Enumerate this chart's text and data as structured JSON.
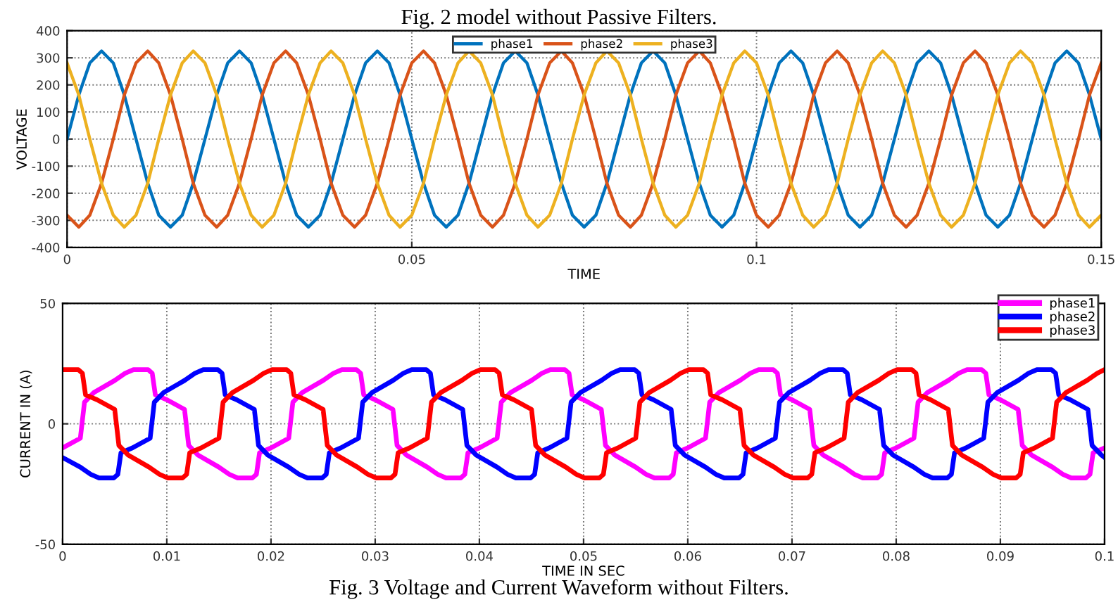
{
  "chart_data": [
    {
      "type": "line",
      "annotations": [
        "Fig. 2 model without Passive Filters."
      ],
      "xlabel": "TIME",
      "ylabel": "VOLTAGE",
      "xlim": [
        0,
        0.15
      ],
      "xticks": [
        0,
        0.05,
        0.1,
        0.15
      ],
      "ylim": [
        -400,
        400
      ],
      "yticks": [
        -400,
        -300,
        -200,
        -100,
        0,
        100,
        200,
        300,
        400
      ],
      "grid": true,
      "legend": "top",
      "x": [
        0,
        0.0017,
        0.0033,
        0.005,
        0.0067,
        0.0083,
        0.01,
        0.0117,
        0.0133,
        0.015,
        0.0167,
        0.0183,
        0.02,
        0.0217,
        0.0233,
        0.025,
        0.0267,
        0.0283,
        0.03,
        0.0317,
        0.0333,
        0.035,
        0.0367,
        0.0383,
        0.04,
        0.0417,
        0.0433,
        0.045,
        0.0467,
        0.0483,
        0.05,
        0.0517,
        0.0533,
        0.055,
        0.0567,
        0.0583,
        0.06,
        0.0617,
        0.0633,
        0.065,
        0.0667,
        0.0683,
        0.07,
        0.0717,
        0.0733,
        0.075,
        0.0767,
        0.0783,
        0.08,
        0.0817,
        0.0833,
        0.085,
        0.0867,
        0.0883,
        0.09,
        0.0917,
        0.0933,
        0.095,
        0.0967,
        0.0983,
        0.1,
        0.1017,
        0.1033,
        0.105,
        0.1067,
        0.1083,
        0.11,
        0.1117,
        0.1133,
        0.115,
        0.1167,
        0.1183,
        0.12,
        0.1217,
        0.1233,
        0.125,
        0.1267,
        0.1283,
        0.13,
        0.1317,
        0.1333,
        0.135,
        0.1367,
        0.1383,
        0.14,
        0.1417,
        0.1433,
        0.145,
        0.1467,
        0.1483,
        0.15
      ],
      "series": [
        {
          "name": "phase1",
          "color": "#0072bd",
          "values": [
            0,
            163,
            281,
            325,
            281,
            163,
            0,
            -163,
            -281,
            -325,
            -281,
            -163,
            0,
            163,
            281,
            325,
            281,
            163,
            0,
            -163,
            -281,
            -325,
            -281,
            -163,
            0,
            163,
            281,
            325,
            281,
            163,
            0,
            -163,
            -281,
            -325,
            -281,
            -163,
            0,
            163,
            281,
            325,
            281,
            163,
            0,
            -163,
            -281,
            -325,
            -281,
            -163,
            0,
            163,
            281,
            325,
            281,
            163,
            0,
            -163,
            -281,
            -325,
            -281,
            -163,
            0,
            163,
            281,
            325,
            281,
            163,
            0,
            -163,
            -281,
            -325,
            -281,
            -163,
            0,
            163,
            281,
            325,
            281,
            163,
            0,
            -163,
            -281,
            -325,
            -281,
            -163,
            0,
            163,
            281,
            325,
            281,
            163,
            0
          ]
        },
        {
          "name": "phase2",
          "color": "#d95319",
          "values": [
            -281,
            -325,
            -281,
            -163,
            0,
            163,
            281,
            325,
            281,
            163,
            0,
            -163,
            -281,
            -325,
            -281,
            -163,
            0,
            163,
            281,
            325,
            281,
            163,
            0,
            -163,
            -281,
            -325,
            -281,
            -163,
            0,
            163,
            281,
            325,
            281,
            163,
            0,
            -163,
            -281,
            -325,
            -281,
            -163,
            0,
            163,
            281,
            325,
            281,
            163,
            0,
            -163,
            -281,
            -325,
            -281,
            -163,
            0,
            163,
            281,
            325,
            281,
            163,
            0,
            -163,
            -281,
            -325,
            -281,
            -163,
            0,
            163,
            281,
            325,
            281,
            163,
            0,
            -163,
            -281,
            -325,
            -281,
            -163,
            0,
            163,
            281,
            325,
            281,
            163,
            0,
            -163,
            -281,
            -325,
            -281,
            -163,
            0,
            163,
            281
          ]
        },
        {
          "name": "phase3",
          "color": "#edb120",
          "values": [
            281,
            163,
            0,
            -163,
            -281,
            -325,
            -281,
            -163,
            0,
            163,
            281,
            325,
            281,
            163,
            0,
            -163,
            -281,
            -325,
            -281,
            -163,
            0,
            163,
            281,
            325,
            281,
            163,
            0,
            -163,
            -281,
            -325,
            -281,
            -163,
            0,
            163,
            281,
            325,
            281,
            163,
            0,
            -163,
            -281,
            -325,
            -281,
            -163,
            0,
            163,
            281,
            325,
            281,
            163,
            0,
            -163,
            -281,
            -325,
            -281,
            -163,
            0,
            163,
            281,
            325,
            281,
            163,
            0,
            -163,
            -281,
            -325,
            -281,
            -163,
            0,
            163,
            281,
            325,
            281,
            163,
            0,
            -163,
            -281,
            -325,
            -281,
            -163,
            0,
            163,
            281,
            325,
            281,
            163,
            0,
            -163,
            -281,
            -325,
            -281
          ]
        }
      ]
    },
    {
      "type": "line",
      "annotations": [
        "Fig. 3 Voltage and Current Waveform without Filters."
      ],
      "xlabel": "TIME IN SEC",
      "ylabel": "CURRENT IN (A)",
      "xlim": [
        0,
        0.1
      ],
      "xticks": [
        0,
        0.01,
        0.02,
        0.03,
        0.04,
        0.05,
        0.06,
        0.07,
        0.08,
        0.09,
        0.1
      ],
      "ylim": [
        -50,
        50
      ],
      "yticks": [
        -50,
        0,
        50
      ],
      "grid": true,
      "legend": "top right",
      "series": [
        {
          "name": "phase1",
          "color": "#ff00ff",
          "x": [
            0,
            0.0017,
            0.0021,
            0.003,
            0.005,
            0.006,
            0.0068,
            0.0082,
            0.0086,
            0.0089,
            0.01,
            0.0117,
            0.0121,
            0.013,
            0.015,
            0.016,
            0.0168,
            0.0182,
            0.0186,
            0.0189,
            0.02,
            0.0217,
            0.0221,
            0.023,
            0.025,
            0.026,
            0.0268,
            0.0282,
            0.0286,
            0.0289,
            0.03,
            0.0317,
            0.0321,
            0.033,
            0.035,
            0.036,
            0.0368,
            0.0382,
            0.0386,
            0.0389,
            0.04,
            0.0417,
            0.0421,
            0.043,
            0.045,
            0.046,
            0.0468,
            0.0482,
            0.0486,
            0.0489,
            0.05,
            0.0517,
            0.0521,
            0.053,
            0.055,
            0.056,
            0.0568,
            0.0582,
            0.0586,
            0.0589,
            0.06,
            0.0617,
            0.0621,
            0.063,
            0.065,
            0.066,
            0.0668,
            0.0682,
            0.0686,
            0.0689,
            0.07,
            0.0717,
            0.0721,
            0.073,
            0.075,
            0.076,
            0.0768,
            0.0782,
            0.0786,
            0.0789,
            0.08,
            0.0817,
            0.0821,
            0.083,
            0.085,
            0.086,
            0.0868,
            0.0882,
            0.0886,
            0.0889,
            0.09,
            0.0917,
            0.0921,
            0.093,
            0.095,
            0.096,
            0.0968,
            0.0982,
            0.0986,
            0.0989,
            0.1
          ],
          "values": [
            -10,
            -6,
            9,
            13,
            18,
            21,
            22.5,
            22.5,
            21,
            12,
            10,
            6,
            -9,
            -13,
            -18,
            -21,
            -22.5,
            -22.5,
            -21,
            -12,
            -10,
            -6,
            9,
            13,
            18,
            21,
            22.5,
            22.5,
            21,
            12,
            10,
            6,
            -9,
            -13,
            -18,
            -21,
            -22.5,
            -22.5,
            -21,
            -12,
            -10,
            -6,
            9,
            13,
            18,
            21,
            22.5,
            22.5,
            21,
            12,
            10,
            6,
            -9,
            -13,
            -18,
            -21,
            -22.5,
            -22.5,
            -21,
            -12,
            -10,
            -6,
            9,
            13,
            18,
            21,
            22.5,
            22.5,
            21,
            12,
            10,
            6,
            -9,
            -13,
            -18,
            -21,
            -22.5,
            -22.5,
            -21,
            -12,
            -10,
            -6,
            9,
            13,
            18,
            21,
            22.5,
            22.5,
            21,
            12,
            10,
            6,
            -9,
            -13,
            -18,
            -21,
            -22.5,
            -22.5,
            -21,
            -12,
            -10
          ]
        },
        {
          "name": "phase2",
          "color": "#0000ff",
          "x": [
            0,
            0.0017,
            0.0027,
            0.0035,
            0.0049,
            0.0053,
            0.0056,
            0.0067,
            0.0084,
            0.0088,
            0.0097,
            0.0117,
            0.0127,
            0.0135,
            0.0149,
            0.0153,
            0.0156,
            0.0167,
            0.0184,
            0.0188,
            0.0197,
            0.0217,
            0.0227,
            0.0235,
            0.0249,
            0.0253,
            0.0256,
            0.0267,
            0.0284,
            0.0288,
            0.0297,
            0.0317,
            0.0327,
            0.0335,
            0.0349,
            0.0353,
            0.0356,
            0.0367,
            0.0384,
            0.0388,
            0.0397,
            0.0417,
            0.0427,
            0.0435,
            0.0449,
            0.0453,
            0.0456,
            0.0467,
            0.0484,
            0.0488,
            0.0497,
            0.0517,
            0.0527,
            0.0535,
            0.0549,
            0.0553,
            0.0556,
            0.0567,
            0.0584,
            0.0588,
            0.0597,
            0.0617,
            0.0627,
            0.0635,
            0.0649,
            0.0653,
            0.0656,
            0.0667,
            0.0684,
            0.0688,
            0.0697,
            0.0717,
            0.0727,
            0.0735,
            0.0749,
            0.0753,
            0.0756,
            0.0767,
            0.0784,
            0.0788,
            0.0797,
            0.0817,
            0.0827,
            0.0835,
            0.0849,
            0.0853,
            0.0856,
            0.0867,
            0.0884,
            0.0888,
            0.0897,
            0.0917,
            0.0927,
            0.0935,
            0.0949,
            0.0953,
            0.0956,
            0.0967,
            0.0984,
            0.0988,
            0.0997,
            0.1
          ],
          "values": [
            -14,
            -18,
            -21,
            -22.5,
            -22.5,
            -21,
            -12,
            -10,
            -6,
            9,
            13,
            18,
            21,
            22.5,
            22.5,
            21,
            12,
            10,
            6,
            -9,
            -13,
            -18,
            -21,
            -22.5,
            -22.5,
            -21,
            -12,
            -10,
            -6,
            9,
            13,
            18,
            21,
            22.5,
            22.5,
            21,
            12,
            10,
            6,
            -9,
            -13,
            -18,
            -21,
            -22.5,
            -22.5,
            -21,
            -12,
            -10,
            -6,
            9,
            13,
            18,
            21,
            22.5,
            22.5,
            21,
            12,
            10,
            6,
            -9,
            -13,
            -18,
            -21,
            -22.5,
            -22.5,
            -21,
            -12,
            -10,
            -6,
            9,
            13,
            18,
            21,
            22.5,
            22.5,
            21,
            12,
            10,
            6,
            -9,
            -13,
            -18,
            -21,
            -22.5,
            -22.5,
            -21,
            -12,
            -10,
            -6,
            9,
            13,
            18,
            21,
            22.5,
            22.5,
            21,
            12,
            10,
            6,
            -9,
            -13,
            -14
          ]
        },
        {
          "name": "phase3",
          "color": "#ff0000",
          "x": [
            0,
            0.0015,
            0.0019,
            0.0022,
            0.0033,
            0.005,
            0.0054,
            0.0063,
            0.0083,
            0.0093,
            0.0101,
            0.0115,
            0.0119,
            0.0122,
            0.0133,
            0.015,
            0.0154,
            0.0163,
            0.0183,
            0.0193,
            0.0201,
            0.0215,
            0.0219,
            0.0222,
            0.0233,
            0.025,
            0.0254,
            0.0263,
            0.0283,
            0.0293,
            0.0301,
            0.0315,
            0.0319,
            0.0322,
            0.0333,
            0.035,
            0.0354,
            0.0363,
            0.0383,
            0.0393,
            0.0401,
            0.0415,
            0.0419,
            0.0422,
            0.0433,
            0.045,
            0.0454,
            0.0463,
            0.0483,
            0.0493,
            0.0501,
            0.0515,
            0.0519,
            0.0522,
            0.0533,
            0.055,
            0.0554,
            0.0563,
            0.0583,
            0.0593,
            0.0601,
            0.0615,
            0.0619,
            0.0622,
            0.0633,
            0.065,
            0.0654,
            0.0663,
            0.0683,
            0.0693,
            0.0701,
            0.0715,
            0.0719,
            0.0722,
            0.0733,
            0.075,
            0.0754,
            0.0763,
            0.0783,
            0.0793,
            0.0801,
            0.0815,
            0.0819,
            0.0822,
            0.0833,
            0.085,
            0.0854,
            0.0863,
            0.0883,
            0.0893,
            0.0901,
            0.0915,
            0.0919,
            0.0922,
            0.0933,
            0.095,
            0.0954,
            0.0963,
            0.0983,
            0.0993,
            0.1
          ],
          "values": [
            22.5,
            22.5,
            21,
            12,
            10,
            6,
            -9,
            -13,
            -18,
            -21,
            -22.5,
            -22.5,
            -21,
            -12,
            -10,
            -6,
            9,
            13,
            18,
            21,
            22.5,
            22.5,
            21,
            12,
            10,
            6,
            -9,
            -13,
            -18,
            -21,
            -22.5,
            -22.5,
            -21,
            -12,
            -10,
            -6,
            9,
            13,
            18,
            21,
            22.5,
            22.5,
            21,
            12,
            10,
            6,
            -9,
            -13,
            -18,
            -21,
            -22.5,
            -22.5,
            -21,
            -12,
            -10,
            -6,
            9,
            13,
            18,
            21,
            22.5,
            22.5,
            21,
            12,
            10,
            6,
            -9,
            -13,
            -18,
            -21,
            -22.5,
            -22.5,
            -21,
            -12,
            -10,
            -6,
            9,
            13,
            18,
            21,
            22.5,
            22.5,
            21,
            12,
            10,
            6,
            -9,
            -13,
            -18,
            -21,
            -22.5,
            -22.5,
            -21,
            -12,
            -10,
            -6,
            9,
            13,
            18,
            21,
            22.5
          ]
        }
      ]
    }
  ]
}
